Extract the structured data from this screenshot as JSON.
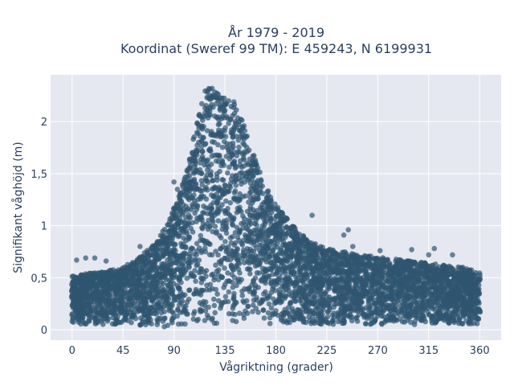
{
  "chart_data": {
    "type": "scatter",
    "title_line1": "År 1979 - 2019",
    "title_line2": "Koordinat (Sweref 99 TM): E 459243, N 6199931",
    "xlabel": "Vågriktning (grader)",
    "ylabel": "Signifikant våghöjd (m)",
    "xlim": [
      -19,
      379
    ],
    "ylim": [
      -0.1,
      2.45
    ],
    "x_ticks": [
      0,
      45,
      90,
      135,
      180,
      225,
      270,
      315,
      360
    ],
    "x_tick_labels": [
      "0",
      "45",
      "90",
      "135",
      "180",
      "225",
      "270",
      "315",
      "360"
    ],
    "y_ticks": [
      0,
      0.5,
      1,
      1.5,
      2
    ],
    "y_tick_labels": [
      "0",
      "0,5",
      "1",
      "1,5",
      "2"
    ],
    "grid": true,
    "marker_color": "#2f5670",
    "plot_bg": "#e5e8f0",
    "envelope": {
      "x": [
        0,
        20,
        45,
        60,
        75,
        85,
        95,
        105,
        112,
        118,
        122,
        128,
        135,
        140,
        150,
        160,
        170,
        180,
        195,
        210,
        225,
        240,
        255,
        270,
        285,
        300,
        315,
        330,
        345,
        360
      ],
      "y_min": [
        0.05,
        0.05,
        0.05,
        0.03,
        0.02,
        0.02,
        0.03,
        0.03,
        0.05,
        0.05,
        0.05,
        0.05,
        0.05,
        0.05,
        0.05,
        0.05,
        0.05,
        0.05,
        0.05,
        0.05,
        0.05,
        0.05,
        0.05,
        0.05,
        0.05,
        0.05,
        0.05,
        0.05,
        0.05,
        0.05
      ],
      "y_max": [
        0.52,
        0.55,
        0.6,
        0.7,
        0.85,
        1.05,
        1.3,
        1.7,
        2.15,
        2.35,
        2.33,
        2.3,
        2.28,
        2.25,
        2.05,
        1.7,
        1.4,
        1.2,
        1.0,
        0.85,
        0.78,
        0.75,
        0.72,
        0.7,
        0.68,
        0.66,
        0.64,
        0.62,
        0.6,
        0.55
      ]
    },
    "sample_points": [
      {
        "x": 4,
        "y": 0.67
      },
      {
        "x": 12,
        "y": 0.69
      },
      {
        "x": 20,
        "y": 0.69
      },
      {
        "x": 30,
        "y": 0.66
      },
      {
        "x": 60,
        "y": 0.8
      },
      {
        "x": 90,
        "y": 1.42
      },
      {
        "x": 93,
        "y": 1.35
      },
      {
        "x": 95,
        "y": 1.25
      },
      {
        "x": 175,
        "y": 1.18
      },
      {
        "x": 200,
        "y": 0.8
      },
      {
        "x": 212,
        "y": 1.1
      },
      {
        "x": 240,
        "y": 0.91
      },
      {
        "x": 244,
        "y": 0.96
      },
      {
        "x": 248,
        "y": 0.8
      },
      {
        "x": 272,
        "y": 0.76
      },
      {
        "x": 300,
        "y": 0.77
      },
      {
        "x": 315,
        "y": 0.72
      },
      {
        "x": 320,
        "y": 0.78
      },
      {
        "x": 336,
        "y": 0.72
      },
      {
        "x": 345,
        "y": 0.6
      }
    ]
  }
}
